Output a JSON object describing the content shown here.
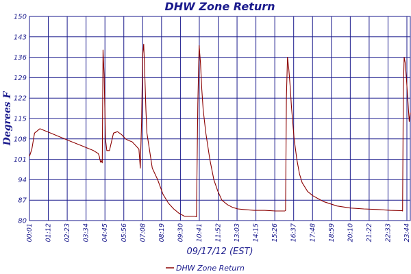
{
  "chart_data": {
    "type": "line",
    "title": "DHW Zone Return",
    "xlabel": "09/17/12 (EST)",
    "ylabel": "Degrees F",
    "ylim": [
      80,
      150
    ],
    "yticks": [
      "80",
      "87",
      "94",
      "101",
      "108",
      "115",
      "122",
      "129",
      "136",
      "143",
      "150"
    ],
    "xticks": [
      "00:01",
      "01:12",
      "02:23",
      "03:34",
      "04:45",
      "05:56",
      "07:08",
      "08:19",
      "09:30",
      "10:41",
      "11:52",
      "13:03",
      "14:15",
      "15:26",
      "16:37",
      "17:48",
      "18:59",
      "20:10",
      "21:22",
      "22:33",
      "23:44"
    ],
    "grid": true,
    "legend_position": "bottom",
    "series": [
      {
        "name": "DHW Zone Return",
        "color": "#8b0000",
        "x_minutes": [
          1,
          10,
          20,
          40,
          80,
          120,
          160,
          200,
          240,
          258,
          262,
          264,
          267,
          270,
          273,
          276,
          280,
          285,
          290,
          300,
          315,
          330,
          345,
          360,
          370,
          385,
          400,
          410,
          415,
          420,
          424,
          428,
          432,
          436,
          440,
          450,
          460,
          480,
          500,
          520,
          540,
          560,
          580,
          600,
          615,
          620,
          625,
          630,
          635,
          640,
          645,
          650,
          660,
          675,
          690,
          705,
          720,
          740,
          760,
          780,
          800,
          840,
          880,
          920,
          950,
          955,
          958,
          961,
          965,
          970,
          975,
          980,
          990,
          1000,
          1010,
          1020,
          1040,
          1060,
          1080,
          1100,
          1150,
          1200,
          1250,
          1300,
          1350,
          1390,
          1393,
          1395,
          1398,
          1401,
          1405,
          1410,
          1415,
          1420,
          1424
        ],
        "values": [
          102,
          104.5,
          110,
          111.5,
          110,
          108.5,
          107,
          105.5,
          104,
          103,
          102,
          101,
          100,
          100.5,
          99.8,
          138.5,
          130,
          108,
          104,
          104,
          110,
          110.5,
          109.5,
          108,
          107.5,
          107,
          105.5,
          104.5,
          98,
          114,
          137,
          140.5,
          130,
          118,
          110,
          104,
          98,
          94,
          89,
          86,
          84,
          82.5,
          81.5,
          81.5,
          81.5,
          81.5,
          81.3,
          120,
          140,
          134,
          125,
          118,
          110,
          101,
          94,
          90,
          87,
          85.5,
          84.5,
          84,
          83.8,
          83.5,
          83.5,
          83.3,
          83.3,
          83.3,
          83.5,
          122,
          136,
          132,
          126,
          119,
          108,
          101,
          96,
          93,
          90,
          88.5,
          87.5,
          86.5,
          85,
          84.3,
          84,
          83.8,
          83.5,
          83.4,
          83.4,
          83.3,
          125,
          136,
          134,
          128,
          121,
          114,
          117
        ]
      }
    ]
  }
}
